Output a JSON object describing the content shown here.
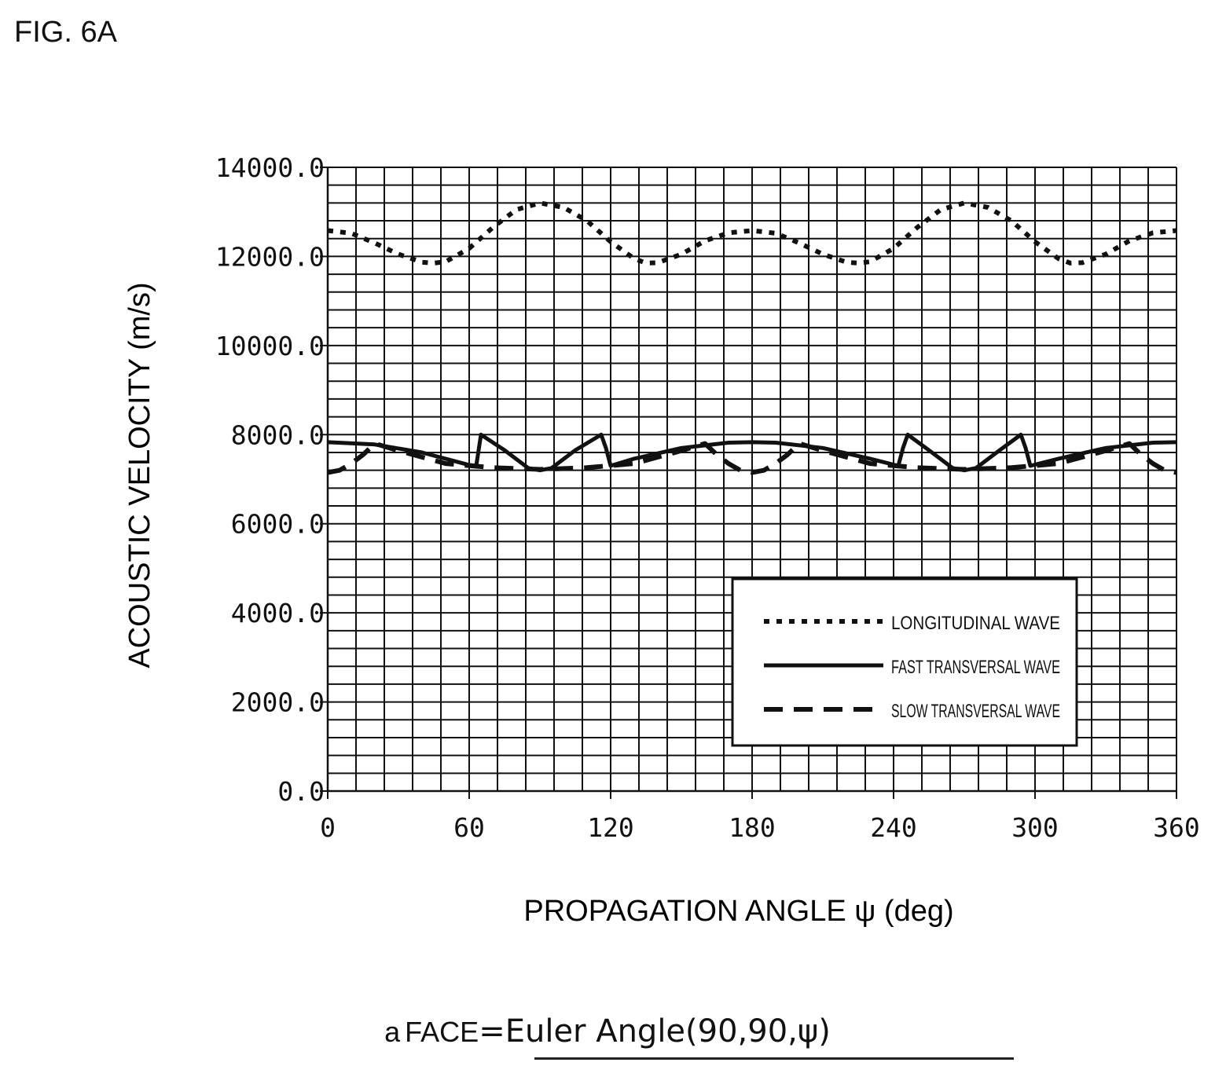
{
  "figure": {
    "label": "FIG. 6A"
  },
  "caption": {
    "prefix": "a",
    "face": "FACE",
    "equals": "=",
    "formula": "Euler Angle(90,90,ψ)"
  },
  "colors": {
    "ink": "#111111",
    "grid": "#111111",
    "background": "#ffffff"
  },
  "chart_data": {
    "type": "line",
    "xlabel": "PROPAGATION ANGLE ψ (deg)",
    "ylabel": "ACOUSTIC VELOCITY (m/s)",
    "xlim": [
      0,
      360
    ],
    "ylim": [
      0,
      14000
    ],
    "xticks": [
      "0",
      "60",
      "120",
      "180",
      "240",
      "300",
      "360"
    ],
    "yticks": [
      "0.0",
      "2000.0",
      "4000.0",
      "6000.0",
      "8000.0",
      "10000.0",
      "12000.0",
      "14000.0"
    ],
    "grid": true,
    "legend_position": "lower-right",
    "series": [
      {
        "name": "LONGITUDINAL WAVE",
        "style": "dotted",
        "x": [
          0,
          10,
          20,
          30,
          40,
          45,
          50,
          60,
          70,
          80,
          90,
          100,
          110,
          120,
          130,
          135,
          140,
          150,
          160,
          170,
          180,
          190,
          200,
          210,
          220,
          225,
          230,
          240,
          250,
          260,
          270,
          280,
          290,
          300,
          310,
          315,
          320,
          330,
          340,
          350,
          360
        ],
        "y": [
          12580,
          12520,
          12300,
          12050,
          11870,
          11850,
          11880,
          12180,
          12650,
          13050,
          13200,
          13100,
          12800,
          12330,
          11950,
          11850,
          11860,
          12050,
          12350,
          12530,
          12580,
          12520,
          12300,
          12050,
          11870,
          11850,
          11880,
          12180,
          12650,
          13050,
          13200,
          13100,
          12800,
          12330,
          11950,
          11850,
          11860,
          12050,
          12350,
          12530,
          12580
        ]
      },
      {
        "name": "FAST TRANSVERSAL WAVE",
        "style": "solid",
        "x": [
          0,
          20,
          40,
          60,
          63,
          65,
          75,
          85,
          90,
          95,
          105,
          116,
          118,
          120,
          130,
          150,
          170,
          180,
          190,
          210,
          230,
          242,
          244,
          246,
          255,
          265,
          270,
          275,
          285,
          294,
          296,
          298,
          310,
          330,
          350,
          360
        ],
        "y": [
          7830,
          7780,
          7600,
          7320,
          7300,
          8000,
          7650,
          7250,
          7200,
          7250,
          7650,
          8000,
          7700,
          7300,
          7460,
          7700,
          7820,
          7830,
          7820,
          7700,
          7460,
          7300,
          7700,
          8000,
          7650,
          7250,
          7200,
          7250,
          7650,
          8000,
          7700,
          7300,
          7460,
          7700,
          7820,
          7830
        ]
      },
      {
        "name": "SLOW TRANSVERSAL WAVE",
        "style": "dashed",
        "x": [
          0,
          5,
          10,
          15,
          20,
          30,
          50,
          70,
          90,
          110,
          130,
          150,
          160,
          165,
          170,
          175,
          180,
          185,
          190,
          195,
          200,
          210,
          230,
          250,
          270,
          290,
          310,
          330,
          340,
          345,
          350,
          355,
          360
        ],
        "y": [
          7150,
          7200,
          7350,
          7550,
          7800,
          7640,
          7350,
          7260,
          7220,
          7260,
          7350,
          7640,
          7800,
          7550,
          7350,
          7200,
          7150,
          7200,
          7350,
          7550,
          7800,
          7640,
          7350,
          7260,
          7220,
          7260,
          7350,
          7640,
          7800,
          7550,
          7350,
          7200,
          7150
        ]
      }
    ]
  }
}
